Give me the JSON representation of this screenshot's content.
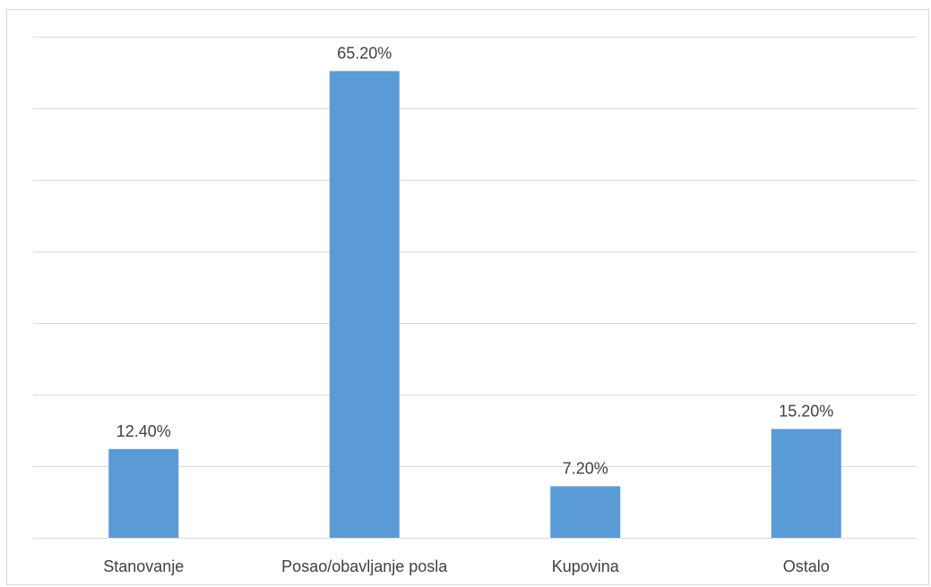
{
  "chart_data": {
    "type": "bar",
    "categories": [
      "Stanovanje",
      "Posao/obavljanje posla",
      "Kupovina",
      "Ostalo"
    ],
    "values": [
      12.4,
      65.2,
      7.2,
      15.2
    ],
    "value_labels": [
      "12.40%",
      "65.20%",
      "7.20%",
      "15.20%"
    ],
    "ylim": [
      0,
      70
    ],
    "grid": true,
    "legend": "none",
    "colors": {
      "bar": "#5b9bd5",
      "grid": "#d9d9d9",
      "text": "#404040"
    }
  }
}
